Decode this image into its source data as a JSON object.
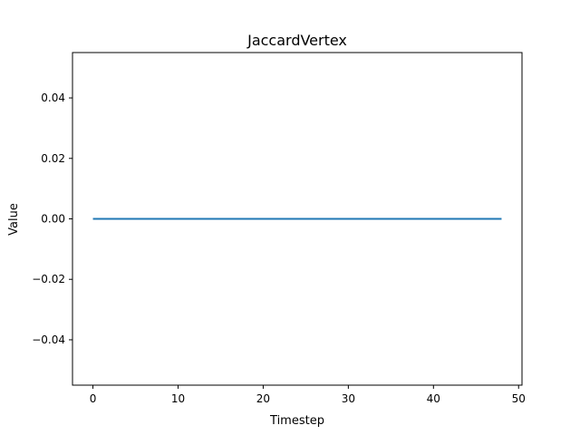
{
  "chart_data": {
    "type": "line",
    "title": "JaccardVertex",
    "xlabel": "Timestep",
    "ylabel": "Value",
    "xlim": [
      -2.4,
      50.4
    ],
    "ylim": [
      -0.055,
      0.055
    ],
    "xticks": [
      0,
      10,
      20,
      30,
      40,
      50
    ],
    "xtick_labels": [
      "0",
      "10",
      "20",
      "30",
      "40",
      "50"
    ],
    "yticks": [
      0.04,
      0.02,
      0.0,
      -0.02,
      -0.04
    ],
    "ytick_labels": [
      "0.04",
      "0.02",
      "0.00",
      "−0.02",
      "−0.04"
    ],
    "grid": false,
    "series": [
      {
        "color": "#1f77b4",
        "x": [
          0,
          1,
          2,
          3,
          4,
          5,
          6,
          7,
          8,
          9,
          10,
          11,
          12,
          13,
          14,
          15,
          16,
          17,
          18,
          19,
          20,
          21,
          22,
          23,
          24,
          25,
          26,
          27,
          28,
          29,
          30,
          31,
          32,
          33,
          34,
          35,
          36,
          37,
          38,
          39,
          40,
          41,
          42,
          43,
          44,
          45,
          46,
          47,
          48
        ],
        "values": [
          0,
          0,
          0,
          0,
          0,
          0,
          0,
          0,
          0,
          0,
          0,
          0,
          0,
          0,
          0,
          0,
          0,
          0,
          0,
          0,
          0,
          0,
          0,
          0,
          0,
          0,
          0,
          0,
          0,
          0,
          0,
          0,
          0,
          0,
          0,
          0,
          0,
          0,
          0,
          0,
          0,
          0,
          0,
          0,
          0,
          0,
          0,
          0,
          0
        ]
      }
    ]
  }
}
